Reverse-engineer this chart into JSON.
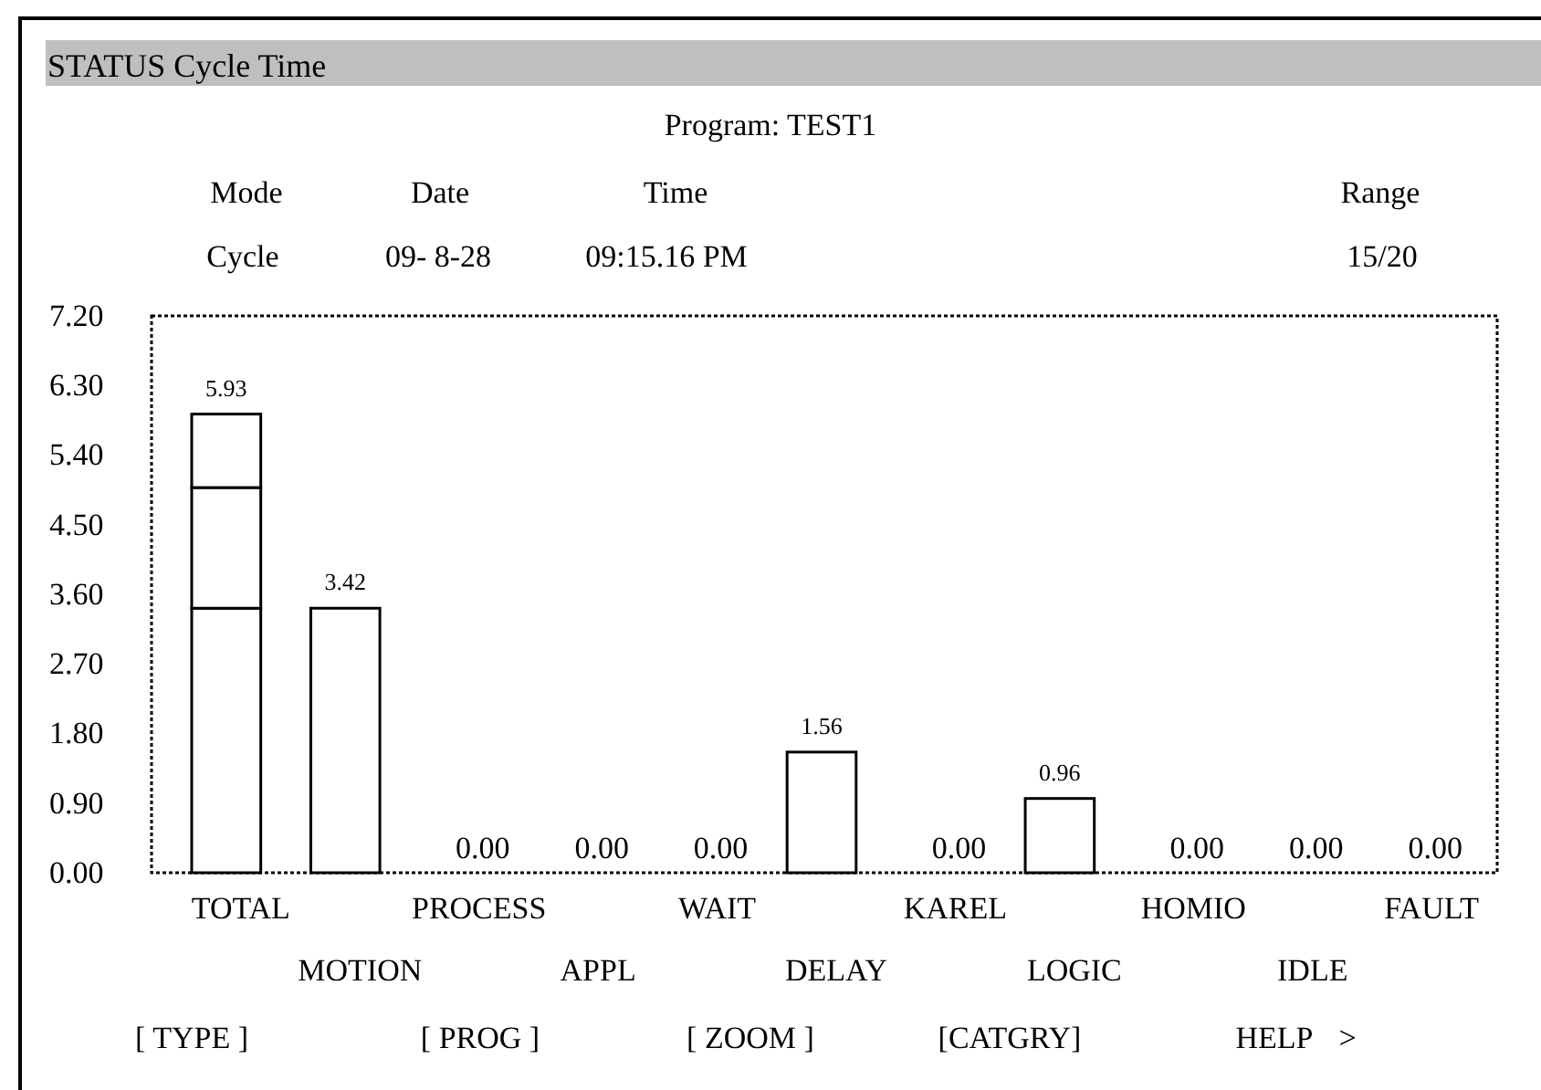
{
  "chart_data": {
    "type": "bar",
    "title": "STATUS Cycle Time",
    "annotations": [
      "Program: TEST1",
      "Mode",
      "Date",
      "Time",
      "Range",
      "Cycle",
      "09- 8-28",
      "09:15.16 PM",
      "15/20",
      "[ TYPE ]",
      "[ PROG ]",
      "[ ZOOM ]",
      "[CATGRY]",
      "HELP",
      ">"
    ],
    "categories": [
      "TOTAL",
      "MOTION",
      "PROCESS",
      "APPL",
      "WAIT",
      "DELAY",
      "KAREL",
      "LOGIC",
      "HOMIO",
      "IDLE",
      "FAULT"
    ],
    "stacked": true,
    "series": [
      {
        "color": "#ffffff",
        "values": [
          3.42,
          3.42,
          0,
          0,
          0,
          1.56,
          0,
          0.96,
          0,
          0,
          0
        ]
      },
      {
        "color": "#ffffff",
        "values": [
          1.56,
          0,
          0,
          0,
          0,
          0,
          0,
          0,
          0,
          0,
          0
        ]
      },
      {
        "color": "#ffffff",
        "values": [
          0.95,
          0,
          0,
          0,
          0,
          0,
          0,
          0,
          0,
          0,
          0
        ]
      }
    ],
    "totals": [
      "5.93",
      "3.42",
      "0.00",
      "0.00",
      "0.00",
      "1.56",
      "0.00",
      "0.96",
      "0.00",
      "0.00",
      "0.00"
    ],
    "ylim": [
      0,
      7.2
    ],
    "yticks": [
      {
        "value": 0,
        "label": "0.00"
      },
      {
        "value": 0.9,
        "label": "0.90"
      },
      {
        "value": 1.8,
        "label": "1.80"
      },
      {
        "value": 2.7,
        "label": "2.70"
      },
      {
        "value": 3.6,
        "label": "3.60"
      },
      {
        "value": 4.5,
        "label": "4.50"
      },
      {
        "value": 5.4,
        "label": "5.40"
      },
      {
        "value": 6.3,
        "label": "6.30"
      },
      {
        "value": 7.2,
        "label": "7.20"
      }
    ],
    "grid": false
  }
}
